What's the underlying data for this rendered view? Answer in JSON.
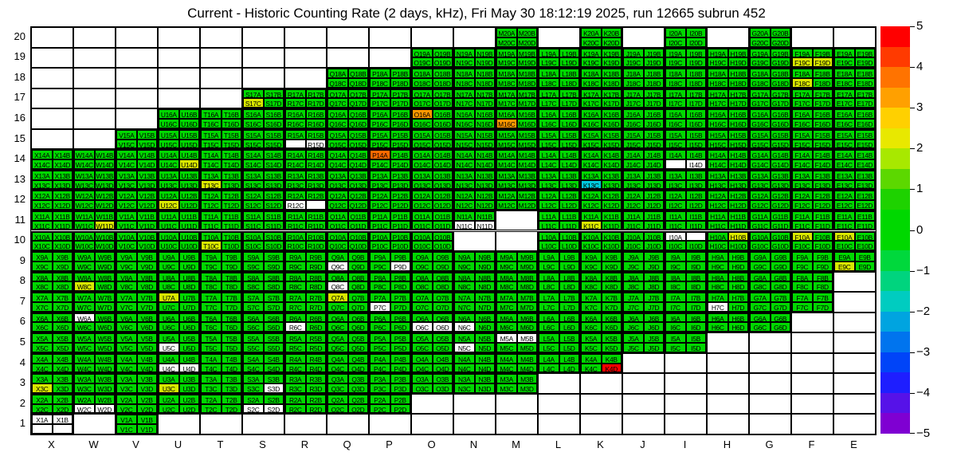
{
  "title": "Current - Historic Counting Rate (2 days, kHz), Fri May 30 18:12:19 2025, run 12665 subrun 452",
  "axes": {
    "x_labels": [
      "X",
      "W",
      "V",
      "U",
      "T",
      "S",
      "R",
      "Q",
      "P",
      "O",
      "N",
      "M",
      "L",
      "K",
      "J",
      "I",
      "H",
      "G",
      "F",
      "E"
    ],
    "y_labels": [
      "20",
      "19",
      "18",
      "17",
      "16",
      "15",
      "14",
      "13",
      "12",
      "11",
      "10",
      "9",
      "8",
      "7",
      "6",
      "5",
      "4",
      "3",
      "2",
      "1"
    ]
  },
  "palette": {
    "g": "#00D800",
    "y": "#D9E800",
    "o": "#FF9800",
    "or": "#FF6A00",
    "r": "#FF0000",
    "c": "#00C8DC",
    "w": "#FFFFFF"
  },
  "colorbar": {
    "tick_labels": [
      "5",
      "4",
      "3",
      "2",
      "1",
      "0",
      "−1",
      "−2",
      "−3",
      "−4",
      "−5"
    ],
    "bands": [
      "#FF0000",
      "#FF3A00",
      "#FF7300",
      "#FFA000",
      "#FFD000",
      "#E8E800",
      "#A8E800",
      "#5CD800",
      "#1ED200",
      "#00D800",
      "#00D800",
      "#00D83C",
      "#00D47E",
      "#00CCC0",
      "#00A4E0",
      "#0074EE",
      "#0044F8",
      "#1E1EFF",
      "#5612E8",
      "#7F00D2"
    ]
  },
  "chart_data": {
    "type": "heatmap",
    "title": "Current - Historic Counting Rate (2 days, kHz), Fri May 30 18:12:19 2025, run 12665 subrun 452",
    "x_categories": [
      "X",
      "W",
      "V",
      "U",
      "T",
      "S",
      "R",
      "Q",
      "P",
      "O",
      "N",
      "M",
      "L",
      "K",
      "J",
      "I",
      "H",
      "G",
      "F",
      "E"
    ],
    "y_categories": [
      20,
      19,
      18,
      17,
      16,
      15,
      14,
      13,
      12,
      11,
      10,
      9,
      8,
      7,
      6,
      5,
      4,
      3,
      2,
      1
    ],
    "colorbar_range": [
      -5,
      5
    ],
    "grid_on": true,
    "legend_position": "right-colorbar",
    "cell_label_format": "{column}{row}{channel}",
    "channels": [
      "A",
      "B",
      "C",
      "D"
    ],
    "default_color": "g",
    "color_values": {
      "g": 0.5,
      "y": 2,
      "o": 3.5,
      "or": 4,
      "r": 5,
      "c": -1.5,
      "w": null
    },
    "rows": [
      {
        "row": 20,
        "cols": "M K I G"
      },
      {
        "row": 19,
        "cols": "O N M L K J I H G F E"
      },
      {
        "row": 18,
        "cols": "Q P O N M L K J I H G F E"
      },
      {
        "row": 17,
        "cols": "S R Q P O N M L K J I H G F E"
      },
      {
        "row": 16,
        "cols": "U T S R Q P O N M L K J I H G F E"
      },
      {
        "row": 15,
        "cols": "V U T S R Q P O N M L K J I H G F E"
      },
      {
        "row": 14,
        "cols": "X W V U T S R Q P O N M L K J I H G F E"
      },
      {
        "row": 13,
        "cols": "X W V U T S R Q P O N M L K J I H G F E"
      },
      {
        "row": 12,
        "cols": "X W V U T S R Q P O N M L K J I H G F E"
      },
      {
        "row": 11,
        "cols": "X W V U T S R Q P O N L K J I H G F E"
      },
      {
        "row": 10,
        "cols": "X W V U T S R Q P O L K J I H G F E"
      },
      {
        "row": 9,
        "cols": "X W V U T S R Q P O N M L K J I H G F E"
      },
      {
        "row": 8,
        "cols": "X W V U T S R Q P O N M L K J I H G F"
      },
      {
        "row": 7,
        "cols": "X W V U T S R Q P O N M L K J I H G F"
      },
      {
        "row": 6,
        "cols": "X W V U T S R Q P O N M L K J I H G"
      },
      {
        "row": 5,
        "cols": "X W V U T S R Q P O N M L K J I"
      },
      {
        "row": 4,
        "cols": "X W V U T S R Q P O N M L K"
      },
      {
        "row": 3,
        "cols": "X W V U T S R Q P O N M"
      },
      {
        "row": 2,
        "cols": "X W V U T S R Q P"
      },
      {
        "row": 1,
        "cols": "X V"
      }
    ],
    "overrides": {
      "K4D": "r",
      "K13C": "c",
      "M16C": "o",
      "O16A": "o",
      "P14A": "or",
      "S17C": "y",
      "W11D": "y",
      "K11C": "y",
      "U7A": "y",
      "Q7A": "y",
      "T13C": "y",
      "U12C": "y",
      "T10C": "y",
      "U14D": "y",
      "F18C": "y",
      "F19C": "y",
      "F19D": "y",
      "H10B": "y",
      "F10A": "y",
      "E10A": "y",
      "E9C": "y",
      "W8C": "y",
      "X3C": "y",
      "U3C": "y",
      "W6A": "w",
      "R6C": "w",
      "O6C": "w",
      "O6D": "w",
      "N6C": "w",
      "P7C": "w",
      "H7C": "w",
      "Q8C": "w",
      "Q9C": "w",
      "P9D": "w",
      "U5C": "w",
      "N5C": "w",
      "M5A": "w",
      "M5B": "w",
      "U4C": "w",
      "U4D": "w",
      "S3D": "w",
      "W2C": "w",
      "W2D": "w",
      "S2C": "w",
      "S2D": "w",
      "X1A": "w",
      "X1B": "w",
      "I10A": "w",
      "I14D": "w",
      "N11C": "w",
      "N11D": "w",
      "R15D": "w",
      "R12C": "w"
    },
    "blank_boxes": [
      "X1C",
      "X1D",
      "I10B",
      "I14C",
      "R15C",
      "R12D"
    ]
  }
}
